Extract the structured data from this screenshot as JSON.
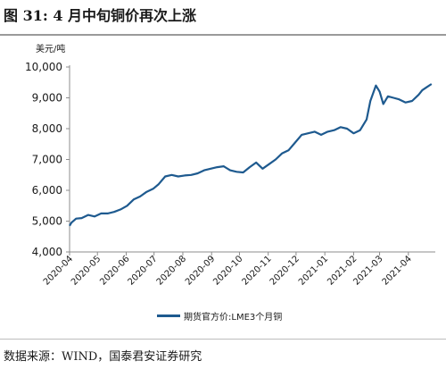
{
  "figure": {
    "title": "图 31: 4 月中旬铜价再次上涨",
    "source": "数据来源：WIND，国泰君安证券研究"
  },
  "colors": {
    "series": "#1e5a8f",
    "axis": "#8c8c8c"
  },
  "chart_data": {
    "type": "line",
    "title": "",
    "xlabel": "",
    "ylabel": "美元/吨",
    "ylim": [
      4000,
      10000
    ],
    "yticks": [
      4000,
      5000,
      6000,
      7000,
      8000,
      9000,
      10000
    ],
    "ytick_labels": [
      "4,000",
      "5,000",
      "6,000",
      "7,000",
      "8,000",
      "9,000",
      "10,000"
    ],
    "xlim": [
      "2020-04-01",
      "2021-04-30"
    ],
    "xticks": [
      "2020-04",
      "2020-05",
      "2020-06",
      "2020-07",
      "2020-08",
      "2020-09",
      "2020-10",
      "2020-11",
      "2020-12",
      "2021-01",
      "2021-02",
      "2021-03",
      "2021-04"
    ],
    "grid": false,
    "legend": "bottom-center",
    "series": [
      {
        "name": "期货官方价:LME3个月铜",
        "x": [
          "2020-04-01",
          "2020-04-03",
          "2020-04-08",
          "2020-04-14",
          "2020-04-21",
          "2020-04-28",
          "2020-05-05",
          "2020-05-12",
          "2020-05-19",
          "2020-05-26",
          "2020-06-02",
          "2020-06-09",
          "2020-06-16",
          "2020-06-23",
          "2020-06-30",
          "2020-07-06",
          "2020-07-13",
          "2020-07-20",
          "2020-07-27",
          "2020-08-03",
          "2020-08-10",
          "2020-08-17",
          "2020-08-24",
          "2020-08-31",
          "2020-09-07",
          "2020-09-14",
          "2020-09-21",
          "2020-09-28",
          "2020-10-05",
          "2020-10-12",
          "2020-10-19",
          "2020-10-26",
          "2020-11-02",
          "2020-11-09",
          "2020-11-16",
          "2020-11-23",
          "2020-11-30",
          "2020-12-07",
          "2020-12-14",
          "2020-12-21",
          "2020-12-28",
          "2021-01-04",
          "2021-01-11",
          "2021-01-18",
          "2021-01-25",
          "2021-02-01",
          "2021-02-08",
          "2021-02-15",
          "2021-02-19",
          "2021-02-25",
          "2021-03-01",
          "2021-03-05",
          "2021-03-10",
          "2021-03-16",
          "2021-03-22",
          "2021-03-29",
          "2021-04-05",
          "2021-04-12",
          "2021-04-16",
          "2021-04-21",
          "2021-04-26"
        ],
        "y": [
          4850,
          4950,
          5080,
          5100,
          5200,
          5150,
          5250,
          5250,
          5300,
          5380,
          5500,
          5700,
          5800,
          5950,
          6050,
          6200,
          6450,
          6500,
          6450,
          6480,
          6500,
          6550,
          6650,
          6700,
          6750,
          6780,
          6650,
          6600,
          6580,
          6750,
          6900,
          6700,
          6850,
          7000,
          7200,
          7300,
          7550,
          7800,
          7850,
          7900,
          7800,
          7900,
          7950,
          8050,
          8000,
          7850,
          7950,
          8300,
          8900,
          9400,
          9200,
          8800,
          9050,
          9000,
          8950,
          8850,
          8900,
          9100,
          9250,
          9350,
          9450
        ]
      }
    ]
  }
}
